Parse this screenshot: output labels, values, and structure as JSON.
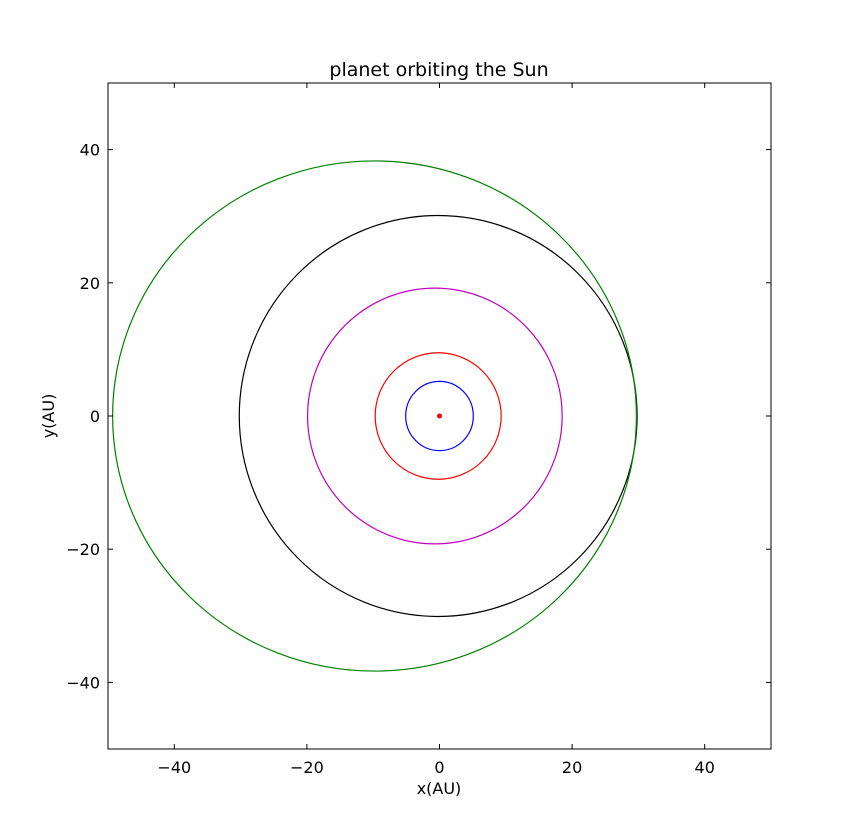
{
  "chart_data": {
    "type": "line",
    "title": "planet orbiting the Sun",
    "xlabel": "x(AU)",
    "ylabel": "y(AU)",
    "xlim": [
      -50,
      50
    ],
    "ylim": [
      -50,
      50
    ],
    "xticks": [
      -40,
      -20,
      0,
      20,
      40
    ],
    "yticks": [
      -40,
      -20,
      0,
      20,
      40
    ],
    "xtick_labels": [
      "−40",
      "−20",
      "0",
      "20",
      "40"
    ],
    "ytick_labels": [
      "−40",
      "−20",
      "0",
      "20",
      "40"
    ],
    "grid": false,
    "legend": "none",
    "sun": {
      "x": 0,
      "y": 0,
      "color": "#ff0000"
    },
    "series": [
      {
        "color": "#0000ff",
        "center_x": 0.0,
        "center_y": 0,
        "semi_major_x": 5.1,
        "semi_minor_y": 5.2
      },
      {
        "color": "#ff0000",
        "center_x": -0.2,
        "center_y": 0,
        "semi_major_x": 9.5,
        "semi_minor_y": 9.5
      },
      {
        "color": "#bf00bf",
        "center_x": -0.7,
        "center_y": 0,
        "semi_major_x": 19.2,
        "semi_minor_y": 19.2
      },
      {
        "color": "#000000",
        "center_x": -0.2,
        "center_y": 0,
        "semi_major_x": 30.0,
        "semi_minor_y": 30.1
      },
      {
        "color": "#008000",
        "center_x": -9.8,
        "center_y": 0,
        "semi_major_x": 39.5,
        "semi_minor_y": 38.3
      }
    ]
  }
}
